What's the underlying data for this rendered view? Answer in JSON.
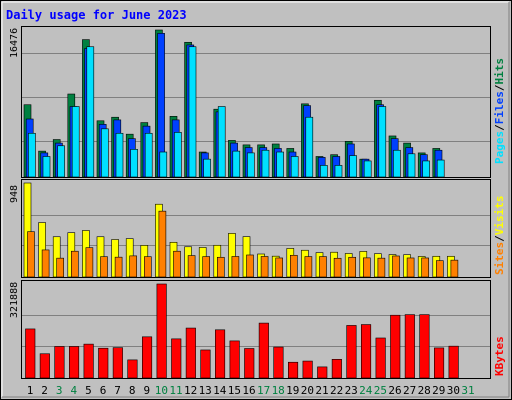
{
  "chart_data": {
    "type": "bar",
    "title": "Daily usage for June 2023",
    "x": [
      "1",
      "2",
      "3",
      "4",
      "5",
      "6",
      "7",
      "8",
      "9",
      "10",
      "11",
      "12",
      "13",
      "14",
      "15",
      "16",
      "17",
      "18",
      "19",
      "20",
      "21",
      "22",
      "23",
      "24",
      "25",
      "26",
      "27",
      "28",
      "29",
      "30",
      "31"
    ],
    "weekend_days": [
      "3",
      "4",
      "10",
      "11",
      "17",
      "18",
      "24",
      "25",
      "31"
    ],
    "colors": {
      "background": "#c0c0c0",
      "plot_background": "#c0c0c0",
      "title": "#0000ff",
      "hits": "#008040",
      "files": "#0040ff",
      "pages": "#00e0ff",
      "visits": "#ffff00",
      "sites": "#ff8000",
      "kbytes": "#ff0000",
      "weekday_label": "#000000",
      "weekend_label": "#008040"
    },
    "panels": [
      {
        "id": "hits-files-pages",
        "axis_max_label": "16476",
        "ylim": [
          0,
          16476
        ],
        "legend_parts": [
          "Pages",
          "Files",
          "Hits"
        ],
        "series": [
          {
            "name": "Hits",
            "key": "hits",
            "values": [
              8100,
              2900,
              4200,
              9300,
              15400,
              6300,
              6700,
              4800,
              6100,
              16476,
              6800,
              15100,
              2800,
              7600,
              4100,
              3600,
              3600,
              3700,
              3200,
              8200,
              2300,
              2500,
              4000,
              2000,
              8600,
              4600,
              3800,
              2700,
              3200,
              0
            ]
          },
          {
            "name": "Files",
            "key": "files",
            "values": [
              6500,
              2700,
              3800,
              7900,
              14400,
              5900,
              6400,
              4300,
              5700,
              16100,
              6400,
              14800,
              2700,
              7300,
              3800,
              3300,
              3300,
              3200,
              2800,
              8000,
              2200,
              2300,
              3700,
              2000,
              8100,
              4300,
              3300,
              2500,
              3000,
              0
            ]
          },
          {
            "name": "Pages",
            "key": "pages",
            "values": [
              4900,
              2300,
              3500,
              7900,
              14600,
              5400,
              4900,
              3100,
              4900,
              2800,
              5000,
              14600,
              2000,
              7900,
              2900,
              2700,
              3000,
              2800,
              2300,
              6700,
              1300,
              1300,
              2400,
              1800,
              7900,
              3000,
              2600,
              1800,
              1900,
              0
            ]
          }
        ]
      },
      {
        "id": "visits-sites",
        "axis_max_label": "948",
        "ylim": [
          0,
          948
        ],
        "legend_parts": [
          "Sites",
          "Visits"
        ],
        "series": [
          {
            "name": "Visits",
            "key": "visits",
            "values": [
              948,
              549,
              406,
              447,
              469,
              406,
              378,
              387,
              319,
              734,
              350,
              305,
              298,
              320,
              440,
              407,
              232,
              210,
              288,
              270,
              246,
              250,
              237,
              258,
              235,
              226,
              225,
              207,
              209,
              209
            ]
          },
          {
            "name": "Sites",
            "key": "sites",
            "values": [
              457,
              273,
              190,
              260,
              296,
              205,
              200,
              213,
              205,
              664,
              260,
              216,
              206,
              199,
              207,
              222,
              207,
              192,
              219,
              206,
              206,
              189,
              199,
              193,
              190,
              212,
              192,
              192,
              165,
              170
            ]
          }
        ]
      },
      {
        "id": "kbytes",
        "axis_max_label": "321888",
        "ylim": [
          0,
          321888
        ],
        "legend_parts": [
          "KBytes"
        ],
        "series": [
          {
            "name": "KBytes",
            "key": "kbytes",
            "values": [
              168000,
              83000,
              108000,
              108000,
              116000,
              102000,
              104000,
              62000,
              141000,
              321888,
              134000,
              171000,
              96000,
              165000,
              127000,
              101000,
              188000,
              106000,
              54000,
              58000,
              38000,
              64000,
              180000,
              183000,
              137000,
              215000,
              217000,
              217000,
              103000,
              109000
            ]
          }
        ]
      }
    ]
  }
}
